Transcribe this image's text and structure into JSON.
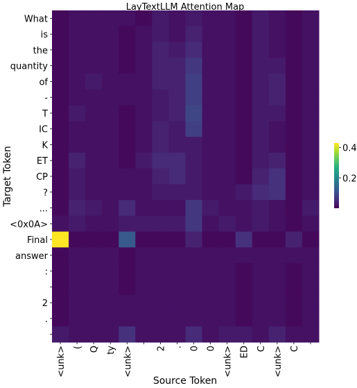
{
  "chart_data": {
    "type": "heatmap",
    "title": "LayTextLLM Attention Map",
    "xlabel": "Source Token",
    "ylabel": "Target Token",
    "x_tokens": [
      "<unk>",
      "(",
      "Q",
      "ty",
      "<unk>",
      "",
      "2",
      ".",
      "0",
      "0",
      "<unk>",
      "ED",
      "C",
      "<unk>",
      "C",
      ""
    ],
    "y_tokens": [
      "What",
      "is",
      "the",
      "quantity",
      "of",
      "-",
      "T",
      "IC",
      "K",
      "ET",
      "CP",
      "?",
      "...",
      "<0x0A>",
      "Final",
      "answer",
      ":",
      "",
      "2",
      ".",
      ""
    ],
    "colorbar": {
      "ticks": [
        0.2,
        0.4
      ],
      "vmin": 0.0,
      "vmax": 0.43,
      "colormap": "viridis"
    },
    "values": [
      [
        0.01,
        0.02,
        0.02,
        0.02,
        0.02,
        0.01,
        0.03,
        0.02,
        0.03,
        0.02,
        0.02,
        0.01,
        0.03,
        0.02,
        0.01,
        0.02
      ],
      [
        0.01,
        0.02,
        0.02,
        0.02,
        0.01,
        0.02,
        0.03,
        0.02,
        0.04,
        0.02,
        0.02,
        0.01,
        0.03,
        0.02,
        0.01,
        0.02
      ],
      [
        0.01,
        0.02,
        0.02,
        0.02,
        0.01,
        0.02,
        0.04,
        0.03,
        0.05,
        0.02,
        0.02,
        0.01,
        0.03,
        0.02,
        0.01,
        0.02
      ],
      [
        0.01,
        0.02,
        0.02,
        0.02,
        0.01,
        0.02,
        0.04,
        0.04,
        0.07,
        0.02,
        0.02,
        0.01,
        0.03,
        0.03,
        0.01,
        0.02
      ],
      [
        0.01,
        0.02,
        0.03,
        0.02,
        0.02,
        0.02,
        0.04,
        0.04,
        0.08,
        0.02,
        0.02,
        0.01,
        0.03,
        0.04,
        0.01,
        0.02
      ],
      [
        0.01,
        0.02,
        0.02,
        0.02,
        0.02,
        0.02,
        0.03,
        0.04,
        0.08,
        0.02,
        0.02,
        0.01,
        0.03,
        0.04,
        0.01,
        0.02
      ],
      [
        0.01,
        0.03,
        0.02,
        0.02,
        0.01,
        0.02,
        0.03,
        0.04,
        0.09,
        0.02,
        0.02,
        0.01,
        0.03,
        0.03,
        0.01,
        0.02
      ],
      [
        0.01,
        0.02,
        0.02,
        0.02,
        0.01,
        0.02,
        0.04,
        0.03,
        0.08,
        0.02,
        0.02,
        0.01,
        0.03,
        0.02,
        0.01,
        0.02
      ],
      [
        0.01,
        0.02,
        0.02,
        0.02,
        0.01,
        0.02,
        0.04,
        0.03,
        0.03,
        0.02,
        0.02,
        0.01,
        0.03,
        0.02,
        0.01,
        0.02
      ],
      [
        0.01,
        0.04,
        0.02,
        0.02,
        0.01,
        0.03,
        0.05,
        0.05,
        0.03,
        0.02,
        0.02,
        0.01,
        0.03,
        0.04,
        0.01,
        0.02
      ],
      [
        0.01,
        0.03,
        0.02,
        0.02,
        0.02,
        0.02,
        0.04,
        0.05,
        0.03,
        0.02,
        0.02,
        0.01,
        0.04,
        0.06,
        0.01,
        0.02
      ],
      [
        0.01,
        0.03,
        0.02,
        0.02,
        0.02,
        0.02,
        0.03,
        0.03,
        0.03,
        0.02,
        0.02,
        0.03,
        0.05,
        0.06,
        0.01,
        0.02
      ],
      [
        0.01,
        0.04,
        0.03,
        0.02,
        0.05,
        0.02,
        0.02,
        0.02,
        0.07,
        0.03,
        0.02,
        0.02,
        0.03,
        0.02,
        0.01,
        0.03
      ],
      [
        0.02,
        0.03,
        0.02,
        0.02,
        0.03,
        0.03,
        0.03,
        0.03,
        0.07,
        0.02,
        0.03,
        0.02,
        0.03,
        0.02,
        0.01,
        0.02
      ],
      [
        0.43,
        0.01,
        0.01,
        0.01,
        0.12,
        0.01,
        0.01,
        0.01,
        0.04,
        0.01,
        0.01,
        0.06,
        0.01,
        0.01,
        0.04,
        0.01
      ],
      [
        0.01,
        0.02,
        0.02,
        0.02,
        0.01,
        0.02,
        0.02,
        0.02,
        0.02,
        0.02,
        0.02,
        0.02,
        0.02,
        0.02,
        0.02,
        0.02
      ],
      [
        0.01,
        0.02,
        0.02,
        0.02,
        0.01,
        0.02,
        0.02,
        0.02,
        0.02,
        0.02,
        0.02,
        0.01,
        0.02,
        0.02,
        0.01,
        0.02
      ],
      [
        0.01,
        0.02,
        0.02,
        0.02,
        0.01,
        0.02,
        0.02,
        0.02,
        0.02,
        0.02,
        0.02,
        0.01,
        0.02,
        0.02,
        0.01,
        0.02
      ],
      [
        0.01,
        0.02,
        0.02,
        0.02,
        0.02,
        0.02,
        0.02,
        0.02,
        0.02,
        0.02,
        0.02,
        0.01,
        0.02,
        0.02,
        0.01,
        0.02
      ],
      [
        0.01,
        0.02,
        0.02,
        0.02,
        0.02,
        0.02,
        0.02,
        0.02,
        0.02,
        0.02,
        0.02,
        0.01,
        0.02,
        0.02,
        0.01,
        0.02
      ],
      [
        0.03,
        0.02,
        0.02,
        0.02,
        0.06,
        0.02,
        0.02,
        0.02,
        0.05,
        0.02,
        0.03,
        0.03,
        0.02,
        0.04,
        0.02,
        0.02
      ]
    ]
  }
}
